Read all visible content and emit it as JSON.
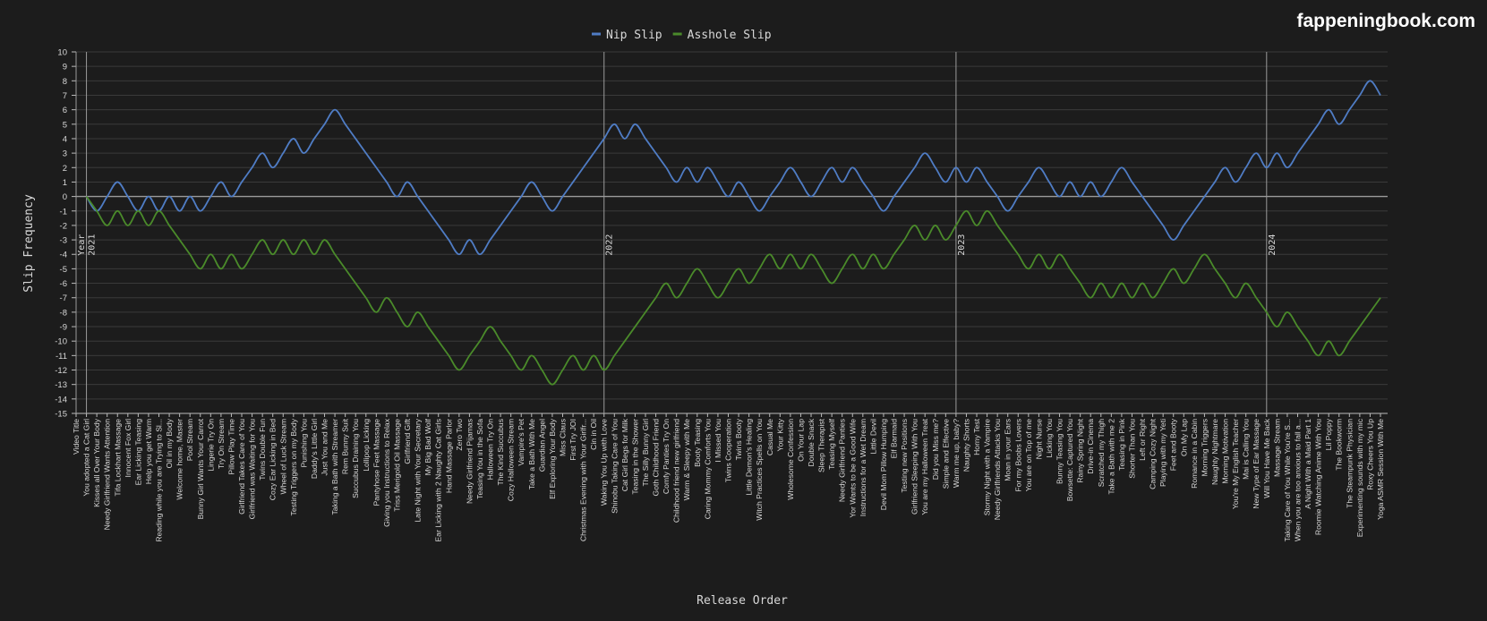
{
  "brand": "fappeningbook.com",
  "chart_data": {
    "type": "line",
    "x_label": "Release Order",
    "y_label": "Slip Frequency",
    "categories": [
      "Video Title",
      "You adopted a Cat Girl",
      "Kisses all Over Your Body",
      "Needy Girlfriend Wants Attention",
      "Tifa Lockhart Massage",
      "Innocent Fox Girl",
      "Ear Licking Teasing",
      "Help you get Warm",
      "Reading while you are Trying to Sl...",
      "Oil in my Body",
      "Welcome home, Master",
      "Pool Stream",
      "Bunny Girl Wants Your Carrot",
      "Lingerie Try On",
      "Try On Stream",
      "Pillow Play Time",
      "Girlfriend Takes Care of You",
      "Girlfriend was Waiting for You",
      "Twins Double Fun",
      "Cozy Ear Licking in Bed",
      "Wheel of Luck Stream",
      "Testing Triggers on my Body",
      "Punishing You",
      "Daddy's Little Girl",
      "Just You and Me",
      "Taking a Bath with Streamer",
      "Rem Bunny Suit",
      "Succubus Draining You",
      "Lollipop Licking",
      "Pantyhose Feet Massage",
      "Giving you Instructions to Relax",
      "Triss Merigold Oil Massage",
      "Girlfriend Gift",
      "Late Night with Your Secretary",
      "My Big Bad Wolf",
      "Ear Licking with 2 Naughty Cat Girls",
      "Hand Massage Parlor",
      "Zero Two",
      "Needy Girlfriend Pijamas",
      "Teasing You in the Sofa",
      "Halloween Try On",
      "The Kind Succubus",
      "Cozy Halloween Stream",
      "Vampire's Pet",
      "Take a Bath With Me",
      "Guardian Angel",
      "Elf Exploring Your Body",
      "Miss Claus",
      "First Try JOI",
      "Christmas Evening with Your Girlfr...",
      "Cin in Oil",
      "Waking You Up with Love",
      "Shinobu Taking Care of You",
      "Cat Girl Begs for Milk",
      "Teasing in the Shower",
      "The Silly Bunny Girl",
      "Goth Childhood Friend",
      "Comfy Panties Try On",
      "Childhood friend new girlfriend",
      "Warm & Sleepy with Me",
      "Booty Teasing",
      "Caring Mommy Comforts You",
      "I Missed You",
      "Twins Cooperation",
      "Twins Booty",
      "Little Demon's Healing",
      "Witch Practices Spells on You",
      "Casual Me",
      "Your Kitty",
      "Wholesome Confession",
      "On Your Lap",
      "Double Snack",
      "Sleep Therapist",
      "Teasing Myself",
      "Needy Girlfriend Panties",
      "Yor Wants to be a Good Wife",
      "Instructions for a Wet Dream",
      "Little Devil",
      "Devil Mom Pillow Humping",
      "Elf Barmaid",
      "Testing new Positions",
      "Girlfriend Sleeping With You",
      "You are my Halloween Treat",
      "Did you Miss me?",
      "Simple and Effective",
      "Warm me up, baby?",
      "Naughty Shorts",
      "Horny Test",
      "Stormy Night with a Vampire",
      "Needy Girlfriends Attacks You",
      "Moan in your Ears",
      "For my Boobs Lovers",
      "You are on Top of me",
      "Night Nurse",
      "Licking You",
      "Bunny Teasing You",
      "Bowsette: Captured You",
      "Rainy Spring Night",
      "Drive-in Cinema",
      "Scratched my Thigh",
      "Take a Bath with me 2",
      "Teasing in Pink",
      "Shorter Than You",
      "Left or Right",
      "Camping Cozy Night",
      "Playing with my Yeti",
      "Feet and Booty",
      "On My Lap",
      "Romance in a Cabin",
      "Morning Triggers",
      "Naughty Nightmare",
      "Morning Motivation",
      "You're My English Teacher",
      "Mai is Calling You",
      "New Type of Ear Massage",
      "Will You Have Me Back",
      "Massage Stream",
      "Taking Care of You While You're S...",
      "When you are too anxious to fall a...",
      "A Night With a Maid Part 1",
      "Roomie Watching Anime With You",
      "Lil Poppy",
      "The Bookworm",
      "The Steampunk Physician",
      "Experimenting sounds with my mic",
      "Roxy Cheers You Up",
      "Yoga ASMR Session With Me"
    ],
    "series": [
      {
        "name": "Nip Slip",
        "color": "#4f7cc4",
        "values": [
          null,
          0,
          -1,
          0,
          1,
          0,
          -1,
          0,
          -1,
          0,
          -1,
          0,
          -1,
          0,
          1,
          0,
          1,
          2,
          3,
          2,
          3,
          4,
          3,
          4,
          5,
          6,
          5,
          4,
          3,
          2,
          1,
          0,
          1,
          0,
          -1,
          -2,
          -3,
          -4,
          -3,
          -4,
          -3,
          -2,
          -1,
          0,
          1,
          0,
          -1,
          0,
          1,
          2,
          3,
          4,
          5,
          4,
          5,
          4,
          3,
          2,
          1,
          2,
          1,
          2,
          1,
          0,
          1,
          0,
          -1,
          0,
          1,
          2,
          1,
          0,
          1,
          2,
          1,
          2,
          1,
          0,
          -1,
          0,
          1,
          2,
          3,
          2,
          1,
          2,
          1,
          2,
          1,
          0,
          -1,
          0,
          1,
          2,
          1,
          0,
          1,
          0,
          1,
          0,
          1,
          2,
          1,
          0,
          -1,
          -2,
          -3,
          -2,
          -1,
          0,
          1,
          2,
          1,
          2,
          3,
          2,
          3,
          2,
          3,
          4,
          5,
          6,
          5,
          6,
          7,
          8,
          7
        ]
      },
      {
        "name": "Asshole Slip",
        "color": "#4a8a2a",
        "values": [
          null,
          0,
          -1,
          -2,
          -1,
          -2,
          -1,
          -2,
          -1,
          -2,
          -3,
          -4,
          -5,
          -4,
          -5,
          -4,
          -5,
          -4,
          -3,
          -4,
          -3,
          -4,
          -3,
          -4,
          -3,
          -4,
          -5,
          -6,
          -7,
          -8,
          -7,
          -8,
          -9,
          -8,
          -9,
          -10,
          -11,
          -12,
          -11,
          -10,
          -9,
          -10,
          -11,
          -12,
          -11,
          -12,
          -13,
          -12,
          -11,
          -12,
          -11,
          -12,
          -11,
          -10,
          -9,
          -8,
          -7,
          -6,
          -7,
          -6,
          -5,
          -6,
          -7,
          -6,
          -5,
          -6,
          -5,
          -4,
          -5,
          -4,
          -5,
          -4,
          -5,
          -6,
          -5,
          -4,
          -5,
          -4,
          -5,
          -4,
          -3,
          -2,
          -3,
          -2,
          -3,
          -2,
          -1,
          -2,
          -1,
          -2,
          -3,
          -4,
          -5,
          -4,
          -5,
          -4,
          -5,
          -6,
          -7,
          -6,
          -7,
          -6,
          -7,
          -6,
          -7,
          -6,
          -5,
          -6,
          -5,
          -4,
          -5,
          -6,
          -7,
          -6,
          -7,
          -8,
          -9,
          -8,
          -9,
          -10,
          -11,
          -10,
          -11,
          -10,
          -9,
          -8,
          -7
        ]
      }
    ],
    "markers": [
      {
        "category": "Video Title",
        "text": "Year"
      },
      {
        "category": "You adopted a Cat Girl",
        "text": "2021"
      },
      {
        "category": "Waking You Up with Love",
        "text": "2022"
      },
      {
        "category": "Warm me up, baby?",
        "text": "2023"
      },
      {
        "category": "Will You Have Me Back",
        "text": "2024"
      }
    ],
    "ylim": [
      -15,
      10
    ],
    "yticks": [
      -15,
      -14,
      -13,
      -12,
      -11,
      -10,
      -9,
      -8,
      -7,
      -6,
      -5,
      -4,
      -3,
      -2,
      -1,
      0,
      1,
      2,
      3,
      4,
      5,
      6,
      7,
      8,
      9,
      10
    ],
    "grid": true,
    "legend": "top"
  }
}
